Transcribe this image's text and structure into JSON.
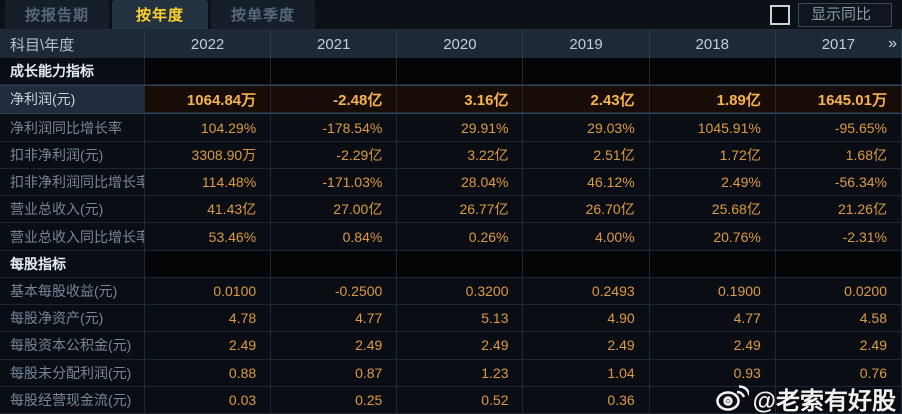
{
  "tabs": [
    {
      "label": "按报告期",
      "active": false
    },
    {
      "label": "按年度",
      "active": true
    },
    {
      "label": "按单季度",
      "active": false
    }
  ],
  "controls": {
    "show_yoy_label": "显示同比",
    "checkbox_checked": false
  },
  "table": {
    "corner_header": "科目\\年度",
    "year_columns": [
      "2022",
      "2021",
      "2020",
      "2019",
      "2018",
      "2017"
    ],
    "more_icon": "»",
    "rows": [
      {
        "type": "section",
        "label": "成长能力指标",
        "values": [
          "",
          "",
          "",
          "",
          "",
          ""
        ]
      },
      {
        "type": "data",
        "label": "净利润(元)",
        "highlight": true,
        "values": [
          "1064.84万",
          "-2.48亿",
          "3.16亿",
          "2.43亿",
          "1.89亿",
          "1645.01万"
        ]
      },
      {
        "type": "data",
        "label": "净利润同比增长率",
        "values": [
          "104.29%",
          "-178.54%",
          "29.91%",
          "29.03%",
          "1045.91%",
          "-95.65%"
        ]
      },
      {
        "type": "data",
        "label": "扣非净利润(元)",
        "values": [
          "3308.90万",
          "-2.29亿",
          "3.22亿",
          "2.51亿",
          "1.72亿",
          "1.68亿"
        ]
      },
      {
        "type": "data",
        "label": "扣非净利润同比增长率",
        "values": [
          "114.48%",
          "-171.03%",
          "28.04%",
          "46.12%",
          "2.49%",
          "-56.34%"
        ]
      },
      {
        "type": "data",
        "label": "营业总收入(元)",
        "values": [
          "41.43亿",
          "27.00亿",
          "26.77亿",
          "26.70亿",
          "25.68亿",
          "21.26亿"
        ]
      },
      {
        "type": "data",
        "label": "营业总收入同比增长率",
        "values": [
          "53.46%",
          "0.84%",
          "0.26%",
          "4.00%",
          "20.76%",
          "-2.31%"
        ]
      },
      {
        "type": "section",
        "label": "每股指标",
        "values": [
          "",
          "",
          "",
          "",
          "",
          ""
        ]
      },
      {
        "type": "data",
        "label": "基本每股收益(元)",
        "values": [
          "0.0100",
          "-0.2500",
          "0.3200",
          "0.2493",
          "0.1900",
          "0.0200"
        ]
      },
      {
        "type": "data",
        "label": "每股净资产(元)",
        "values": [
          "4.78",
          "4.77",
          "5.13",
          "4.90",
          "4.77",
          "4.58"
        ]
      },
      {
        "type": "data",
        "label": "每股资本公积金(元)",
        "values": [
          "2.49",
          "2.49",
          "2.49",
          "2.49",
          "2.49",
          "2.49"
        ]
      },
      {
        "type": "data",
        "label": "每股未分配利润(元)",
        "values": [
          "0.88",
          "0.87",
          "1.23",
          "1.04",
          "0.93",
          "0.76"
        ]
      },
      {
        "type": "data",
        "label": "每股经营现金流(元)",
        "values": [
          "0.03",
          "0.25",
          "0.52",
          "0.36",
          "",
          ""
        ]
      }
    ]
  },
  "watermark": {
    "icon": "weibo-logo",
    "text": "@老索有好股"
  },
  "colors": {
    "background": "#0a0e15",
    "tab_active_text": "#ffd42a",
    "header_bg": "#1d2937",
    "value_orange": "#dc9b43",
    "highlight_value": "#f7b24d",
    "grid_line": "#1e2a38"
  }
}
